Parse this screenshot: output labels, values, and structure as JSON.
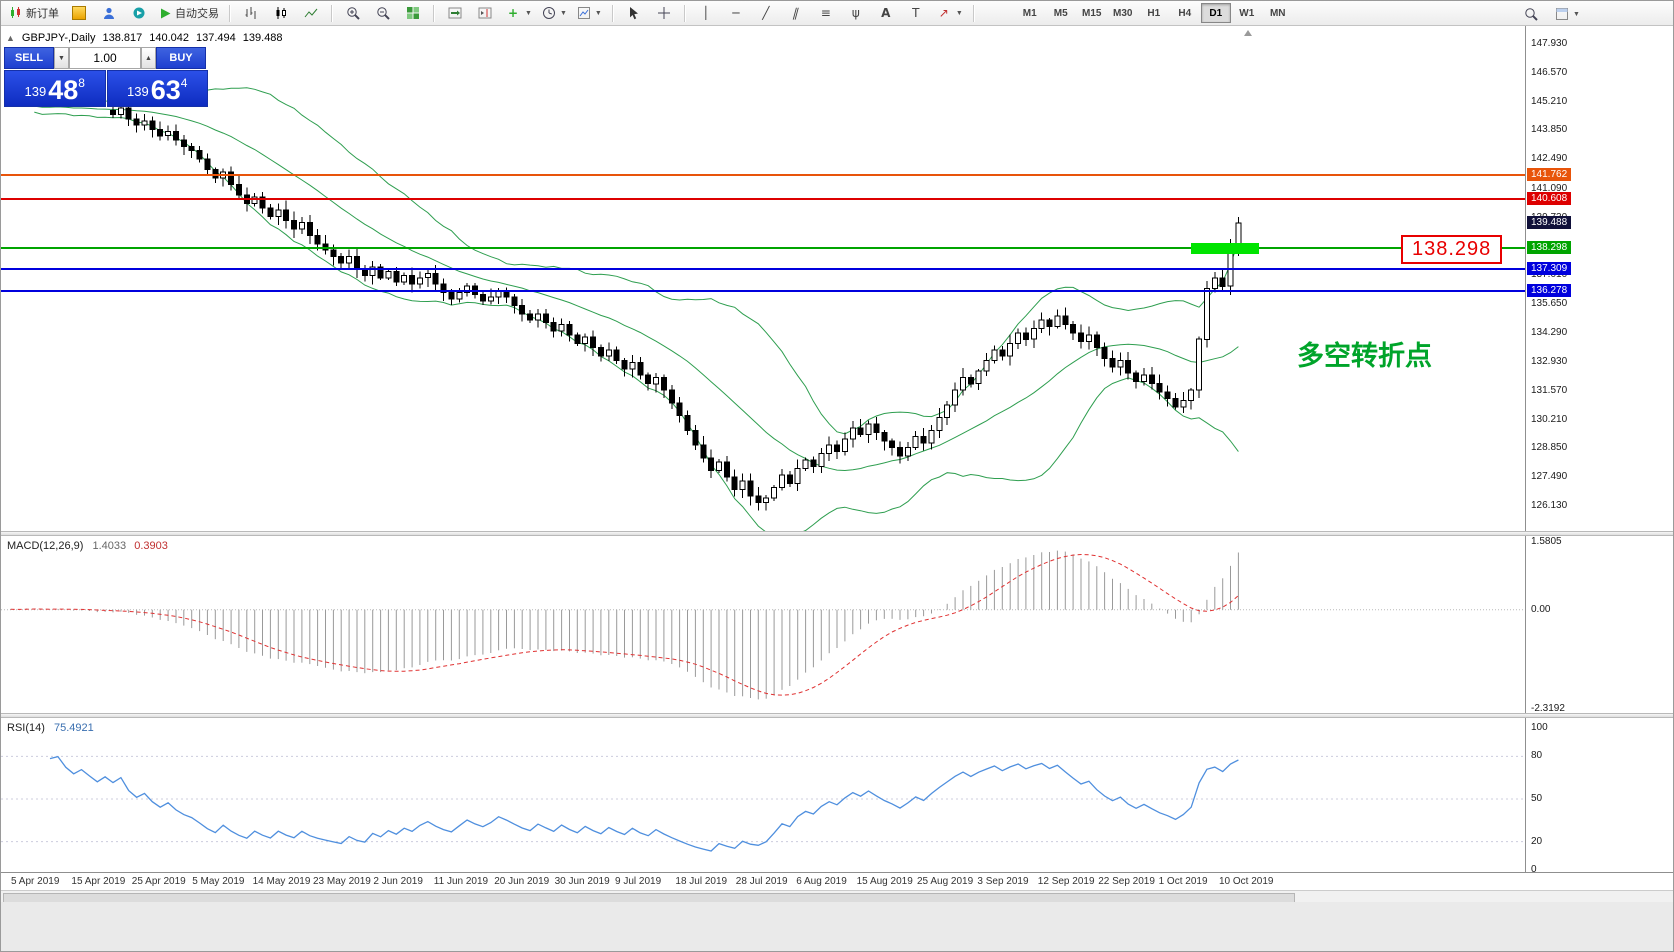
{
  "toolbar": {
    "new_order": "新订单",
    "autotrading": "自动交易",
    "timeframes": [
      "M1",
      "M5",
      "M15",
      "M30",
      "H1",
      "H4",
      "D1",
      "W1",
      "MN"
    ],
    "active_timeframe": "D1"
  },
  "chart_header": {
    "collapse_arrow": "▲",
    "symbol": "GBPJPY-,Daily",
    "open": "138.817",
    "high": "140.042",
    "low": "137.494",
    "close": "139.488"
  },
  "trade_panel": {
    "sell_label": "SELL",
    "buy_label": "BUY",
    "volume": "1.00",
    "spin_down": "▼",
    "spin_up": "▲",
    "sell_price": {
      "prefix": "139",
      "big": "48",
      "sup": "8"
    },
    "buy_price": {
      "prefix": "139",
      "big": "63",
      "sup": "4"
    }
  },
  "annotations": {
    "zone_label": {
      "text": "138.298",
      "color": "#e80000"
    },
    "turning_point": {
      "text": "多空转折点",
      "color": "#00a42a"
    }
  },
  "indicators": {
    "macd_name": "MACD(12,26,9)",
    "macd_main": "1.4033",
    "macd_signal": "0.3903",
    "rsi_name": "RSI(14)",
    "rsi_value": "75.4921"
  },
  "colors": {
    "bollinger": "#2e9e4f",
    "candle_up": "#ffffff",
    "candle_down": "#000000",
    "macd_hist": "#9a9a9a",
    "macd_signal": "#e03232",
    "rsi_line": "#4f8fde",
    "buy_sell_blue": "#1e3fd0"
  },
  "chart_data": [
    {
      "type": "candlestick",
      "symbol": "GBPJPY",
      "timeframe": "Daily",
      "ylim": [
        126.13,
        147.93
      ],
      "hidden_leading": 14,
      "closes": [
        144.9,
        145.1,
        144.8,
        145.2,
        145.0,
        144.7,
        144.9,
        145.1,
        144.8,
        144.6,
        144.9,
        144.7,
        144.5,
        144.8,
        144.6,
        144.9,
        144.4,
        144.1,
        144.3,
        143.9,
        143.6,
        143.8,
        143.4,
        143.1,
        142.9,
        142.5,
        142.0,
        141.6,
        141.9,
        141.3,
        140.8,
        140.4,
        140.7,
        140.2,
        139.8,
        140.1,
        139.6,
        139.2,
        139.5,
        138.9,
        138.5,
        138.2,
        137.9,
        137.6,
        137.9,
        137.3,
        137.0,
        137.4,
        136.9,
        137.2,
        136.7,
        137.0,
        136.6,
        136.9,
        137.1,
        136.6,
        136.2,
        135.9,
        136.2,
        136.5,
        136.1,
        135.8,
        136.0,
        136.3,
        136.0,
        135.6,
        135.2,
        134.9,
        135.2,
        134.8,
        134.4,
        134.7,
        134.2,
        133.8,
        134.1,
        133.6,
        133.2,
        133.5,
        133.0,
        132.6,
        132.9,
        132.3,
        131.9,
        132.2,
        131.6,
        131.0,
        130.4,
        129.7,
        129.0,
        128.4,
        127.8,
        128.2,
        127.5,
        126.9,
        127.3,
        126.6,
        126.3,
        126.5,
        127.0,
        127.6,
        127.2,
        127.9,
        128.3,
        128.0,
        128.6,
        129.0,
        128.7,
        129.3,
        129.8,
        129.5,
        130.0,
        129.6,
        129.2,
        128.9,
        128.5,
        128.9,
        129.4,
        129.1,
        129.7,
        130.3,
        130.9,
        131.6,
        132.2,
        131.9,
        132.5,
        133.0,
        133.5,
        133.2,
        133.8,
        134.3,
        134.0,
        134.5,
        134.9,
        134.6,
        135.1,
        134.7,
        134.3,
        133.9,
        134.2,
        133.6,
        133.1,
        132.7,
        133.0,
        132.4,
        132.0,
        132.3,
        131.9,
        131.5,
        131.2,
        130.8,
        131.1,
        131.6,
        134.0,
        136.4,
        136.9,
        136.5,
        138.3,
        139.49
      ],
      "last_ohlc": {
        "open": 138.817,
        "high": 140.042,
        "low": 137.494,
        "close": 139.488
      },
      "bollinger": {
        "period": 20,
        "deviation": 2
      },
      "y_ticks": [
        "147.930",
        "146.570",
        "145.210",
        "143.850",
        "142.490",
        "141.090",
        "139.730",
        "138.370",
        "137.010",
        "135.650",
        "134.290",
        "132.930",
        "131.570",
        "130.210",
        "128.850",
        "127.490",
        "126.130"
      ],
      "dates": [
        "5 Apr 2019",
        "15 Apr 2019",
        "25 Apr 2019",
        "5 May 2019",
        "14 May 2019",
        "23 May 2019",
        "2 Jun 2019",
        "11 Jun 2019",
        "20 Jun 2019",
        "30 Jun 2019",
        "9 Jul 2019",
        "18 Jul 2019",
        "28 Jul 2019",
        "6 Aug 2019",
        "15 Aug 2019",
        "25 Aug 2019",
        "3 Sep 2019",
        "12 Sep 2019",
        "22 Sep 2019",
        "1 Oct 2019",
        "10 Oct 2019"
      ],
      "h_lines": [
        {
          "price": 141.762,
          "label": "141.762",
          "color": "#e8540a"
        },
        {
          "price": 140.608,
          "label": "140.608",
          "color": "#dd0000"
        },
        {
          "price": 138.298,
          "label": "138.298",
          "color": "#00a400",
          "zone": {
            "x": 1190,
            "w": 68,
            "h": 11,
            "color": "#00e400"
          }
        },
        {
          "price": 137.309,
          "label": "137.309",
          "color": "#0000dd"
        },
        {
          "price": 136.278,
          "label": "136.278",
          "color": "#0000dd"
        }
      ],
      "last_price": {
        "value": 139.488,
        "label": "139.488",
        "badge": "#10103a"
      }
    },
    {
      "type": "line",
      "name": "MACD(12,26,9)",
      "current": [
        1.4033,
        0.3903
      ],
      "range": [
        -2.3192,
        1.5805
      ],
      "y_ticks": [
        "1.5805",
        "0.00",
        "-2.3192"
      ]
    },
    {
      "type": "line",
      "name": "RSI(14)",
      "current": 75.4921,
      "range": [
        0,
        100
      ],
      "levels": [
        20,
        50,
        80
      ],
      "y_ticks": [
        "100",
        "80",
        "50",
        "20",
        "0"
      ]
    }
  ]
}
